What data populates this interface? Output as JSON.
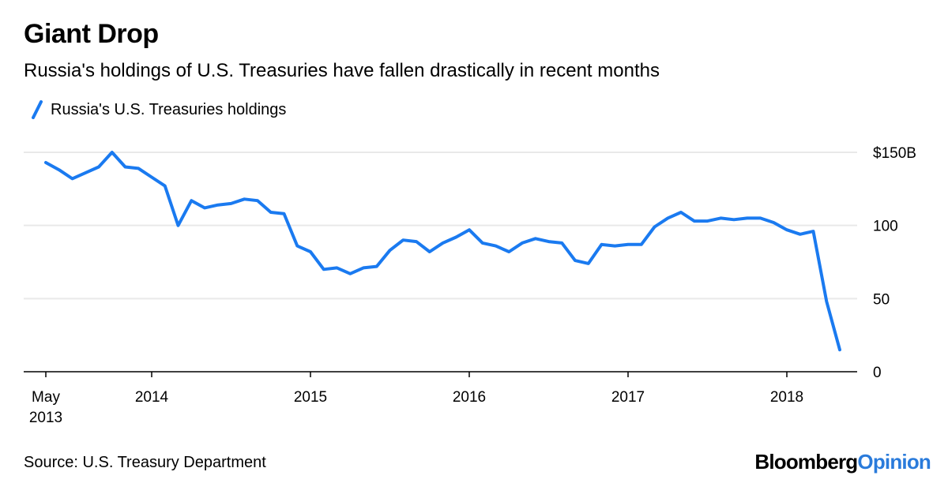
{
  "title": "Giant Drop",
  "subtitle": "Russia's holdings of U.S. Treasuries have fallen drastically in recent months",
  "source": "Source: U.S. Treasury Department",
  "brand": {
    "part1": "Bloomberg",
    "part2": "Opinion"
  },
  "colors": {
    "line": "#1a7af0",
    "grid": "#e9e9e9",
    "brand_accent": "#2a7bdb"
  },
  "chart_data": {
    "type": "line",
    "title": "Giant Drop",
    "subtitle": "Russia's holdings of U.S. Treasuries have fallen drastically in recent months",
    "ylim": [
      0,
      150
    ],
    "y_ticks": [
      {
        "value": 150,
        "label": "$150B"
      },
      {
        "value": 100,
        "label": "100"
      },
      {
        "value": 50,
        "label": "50"
      },
      {
        "value": 0,
        "label": "0"
      }
    ],
    "x_ticks": [
      {
        "date": "2013-05",
        "label": [
          "May",
          "2013"
        ]
      },
      {
        "date": "2014-01",
        "label": [
          "2014"
        ]
      },
      {
        "date": "2015-01",
        "label": [
          "2015"
        ]
      },
      {
        "date": "2016-01",
        "label": [
          "2016"
        ]
      },
      {
        "date": "2017-01",
        "label": [
          "2017"
        ]
      },
      {
        "date": "2018-01",
        "label": [
          "2018"
        ]
      }
    ],
    "x_start": "2013-05",
    "x_end": "2018-05",
    "grid": true,
    "legend_position": "top-left",
    "series": [
      {
        "name": "Russia's U.S. Treasuries holdings",
        "points": [
          [
            "2013-05",
            143
          ],
          [
            "2013-06",
            138
          ],
          [
            "2013-07",
            132
          ],
          [
            "2013-08",
            136
          ],
          [
            "2013-09",
            140
          ],
          [
            "2013-10",
            150
          ],
          [
            "2013-11",
            140
          ],
          [
            "2013-12",
            139
          ],
          [
            "2014-01",
            133
          ],
          [
            "2014-02",
            127
          ],
          [
            "2014-03",
            100
          ],
          [
            "2014-04",
            117
          ],
          [
            "2014-05",
            112
          ],
          [
            "2014-06",
            114
          ],
          [
            "2014-07",
            115
          ],
          [
            "2014-08",
            118
          ],
          [
            "2014-09",
            117
          ],
          [
            "2014-10",
            109
          ],
          [
            "2014-11",
            108
          ],
          [
            "2014-12",
            86
          ],
          [
            "2015-01",
            82
          ],
          [
            "2015-02",
            70
          ],
          [
            "2015-03",
            71
          ],
          [
            "2015-04",
            67
          ],
          [
            "2015-05",
            71
          ],
          [
            "2015-06",
            72
          ],
          [
            "2015-07",
            83
          ],
          [
            "2015-08",
            90
          ],
          [
            "2015-09",
            89
          ],
          [
            "2015-10",
            82
          ],
          [
            "2015-11",
            88
          ],
          [
            "2015-12",
            92
          ],
          [
            "2016-01",
            97
          ],
          [
            "2016-02",
            88
          ],
          [
            "2016-03",
            86
          ],
          [
            "2016-04",
            82
          ],
          [
            "2016-05",
            88
          ],
          [
            "2016-06",
            91
          ],
          [
            "2016-07",
            89
          ],
          [
            "2016-08",
            88
          ],
          [
            "2016-09",
            76
          ],
          [
            "2016-10",
            74
          ],
          [
            "2016-11",
            87
          ],
          [
            "2016-12",
            86
          ],
          [
            "2017-01",
            87
          ],
          [
            "2017-02",
            87
          ],
          [
            "2017-03",
            99
          ],
          [
            "2017-04",
            105
          ],
          [
            "2017-05",
            109
          ],
          [
            "2017-06",
            103
          ],
          [
            "2017-07",
            103
          ],
          [
            "2017-08",
            105
          ],
          [
            "2017-09",
            104
          ],
          [
            "2017-10",
            105
          ],
          [
            "2017-11",
            105
          ],
          [
            "2017-12",
            102
          ],
          [
            "2018-01",
            97
          ],
          [
            "2018-02",
            94
          ],
          [
            "2018-03",
            96
          ],
          [
            "2018-04",
            48
          ],
          [
            "2018-05",
            15
          ]
        ]
      }
    ]
  }
}
